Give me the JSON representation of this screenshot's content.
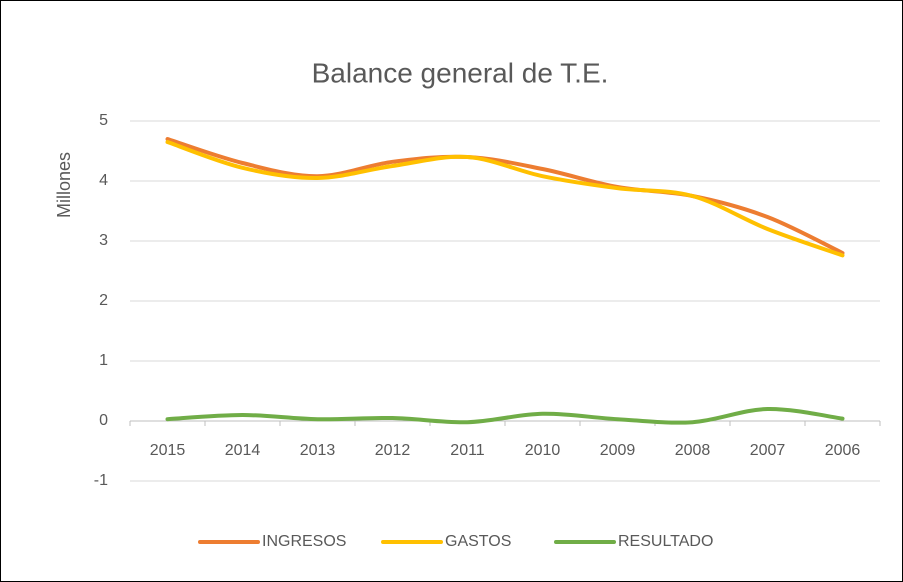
{
  "chart_data": {
    "type": "line",
    "title": "Balance general de T.E.",
    "y_label": "Millones",
    "categories": [
      "2015",
      "2014",
      "2013",
      "2012",
      "2011",
      "2010",
      "2009",
      "2008",
      "2007",
      "2006"
    ],
    "series": [
      {
        "name": "INGRESOS",
        "color": "#ed7d31",
        "values": [
          4.7,
          4.3,
          4.08,
          4.32,
          4.4,
          4.2,
          3.9,
          3.75,
          3.4,
          2.8
        ]
      },
      {
        "name": "GASTOS",
        "color": "#ffc000",
        "values": [
          4.65,
          4.22,
          4.05,
          4.25,
          4.4,
          4.08,
          3.88,
          3.75,
          3.2,
          2.76
        ]
      },
      {
        "name": "RESULTADO",
        "color": "#70ad47",
        "values": [
          0.03,
          0.1,
          0.03,
          0.05,
          -0.02,
          0.12,
          0.03,
          -0.02,
          0.2,
          0.04
        ]
      }
    ],
    "ylim": [
      -1,
      5
    ],
    "yticks": [
      -1,
      0,
      1,
      2,
      3,
      4,
      5
    ],
    "grid": true,
    "smooth": true,
    "legend": "bottom"
  }
}
